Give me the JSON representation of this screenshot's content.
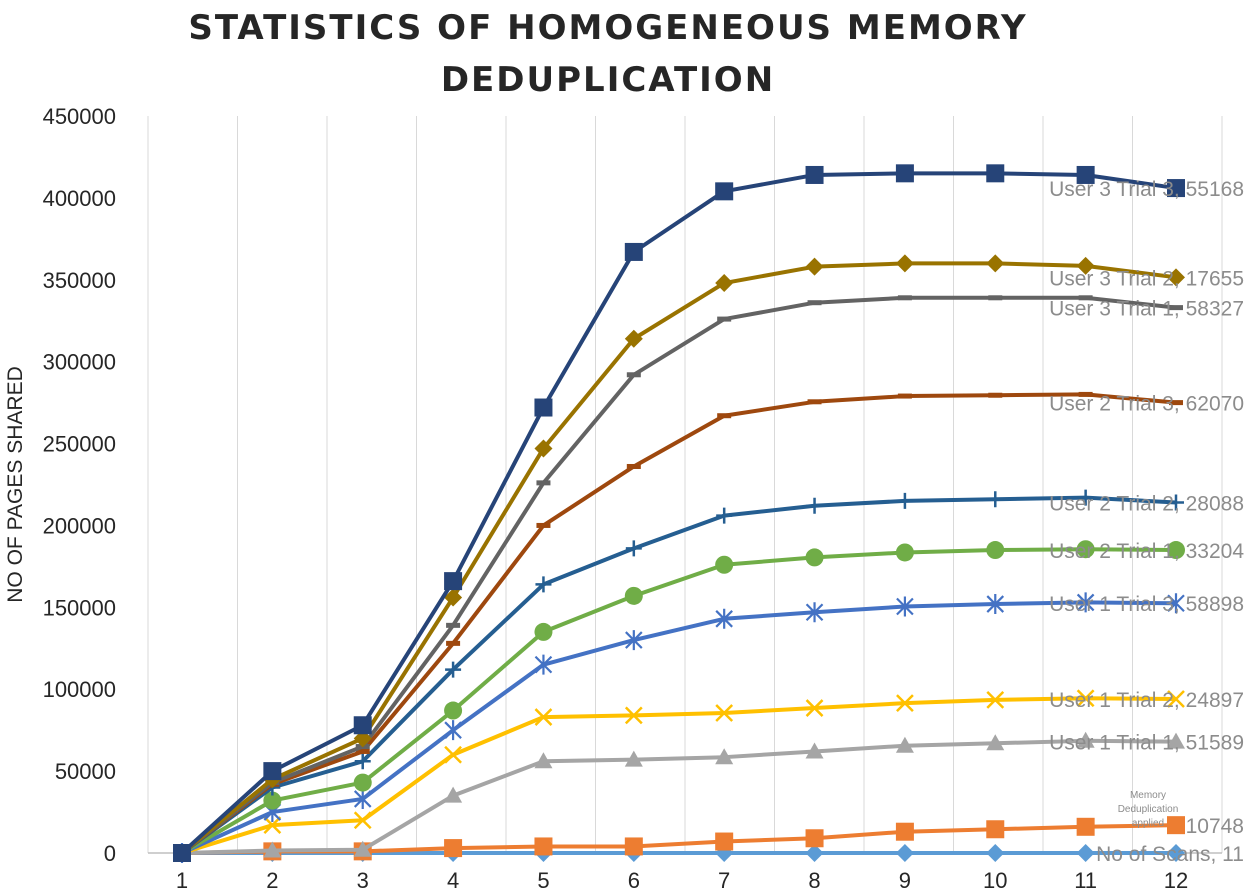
{
  "chart_data": {
    "type": "line",
    "title_lines": [
      "STATISTICS  OF HOMOGENEOUS  MEMORY",
      "DEDUPLICATION"
    ],
    "title": "STATISTICS  OF HOMOGENEOUS  MEMORY DEDUPLICATION",
    "xlabel": "",
    "ylabel": "NO OF PAGES SHARED",
    "x": [
      1,
      2,
      3,
      4,
      5,
      6,
      7,
      8,
      9,
      10,
      11,
      12
    ],
    "ylim": [
      0,
      450000
    ],
    "yticks": [
      "0",
      "50000",
      "100000",
      "150000",
      "200000",
      "250000",
      "300000",
      "350000",
      "400000",
      "450000"
    ],
    "xticks": [
      "1",
      "2",
      "3",
      "4",
      "5",
      "6",
      "7",
      "8",
      "9",
      "10",
      "11",
      "12"
    ],
    "grid": "vertical",
    "series": [
      {
        "name": "No of Scans",
        "color": "#5b9bd5",
        "marker": "diamond",
        "values": [
          0,
          0,
          0,
          0,
          0,
          0,
          0,
          0,
          0,
          0,
          0,
          0
        ],
        "label": "No of Scans, 11"
      },
      {
        "name": "Memory Deduplication applied",
        "color": "#ed7d31",
        "marker": "square",
        "values": [
          0,
          1000,
          1000,
          3000,
          4000,
          4000,
          7000,
          9000,
          13000,
          14500,
          16000,
          17000
        ],
        "label": "10748"
      },
      {
        "name": "User 1 Trial 1",
        "color": "#a5a5a5",
        "marker": "triangle",
        "values": [
          0,
          1500,
          2000,
          35000,
          56000,
          57000,
          58500,
          62000,
          65500,
          67000,
          68500,
          68000
        ],
        "label": "User 1 Trial 1, 51589"
      },
      {
        "name": "User 1 Trial 2",
        "color": "#ffc000",
        "marker": "x",
        "values": [
          0,
          17000,
          20000,
          60000,
          83000,
          84000,
          85500,
          88500,
          91500,
          93500,
          94500,
          94000
        ],
        "label": "User 1 Trial 2, 24897"
      },
      {
        "name": "User 1 Trial 3",
        "color": "#4472c4",
        "marker": "star",
        "values": [
          0,
          25000,
          33000,
          75000,
          115000,
          130000,
          143000,
          147000,
          150500,
          152000,
          153000,
          152500
        ],
        "label": "User 1 Trial 3, 58898"
      },
      {
        "name": "User 2 Trial 1",
        "color": "#70ad47",
        "marker": "circle",
        "values": [
          0,
          32000,
          43000,
          87000,
          135000,
          157000,
          176000,
          180500,
          183500,
          185000,
          185500,
          185000
        ],
        "label": "User 2 Trial 1, 33204"
      },
      {
        "name": "User 2 Trial 2",
        "color": "#255e91",
        "marker": "plus",
        "values": [
          0,
          40000,
          56000,
          112000,
          164000,
          186000,
          206000,
          212000,
          215000,
          216000,
          217000,
          214000
        ],
        "label": "User 2 Trial 2, 28088"
      },
      {
        "name": "User 2 Trial 3",
        "color": "#9e480e",
        "marker": "dash",
        "values": [
          0,
          42000,
          62000,
          128000,
          200000,
          236000,
          267000,
          275500,
          279000,
          279500,
          280000,
          275000
        ],
        "label": "User 2 Trial 3, 62070"
      },
      {
        "name": "User 3 Trial 1",
        "color": "#636363",
        "marker": "dash",
        "values": [
          0,
          43000,
          65000,
          139000,
          226000,
          292000,
          326000,
          336000,
          339000,
          339000,
          339000,
          333000
        ],
        "label": "User 3 Trial 1, 58327"
      },
      {
        "name": "User 3 Trial 2",
        "color": "#997300",
        "marker": "diamond",
        "values": [
          0,
          45000,
          70000,
          156000,
          247000,
          314000,
          348000,
          358000,
          360000,
          360000,
          358500,
          351500
        ],
        "label": "User 3 Trial 2, 17655"
      },
      {
        "name": "User 3 Trial 3",
        "color": "#264478",
        "marker": "square",
        "values": [
          0,
          50000,
          78000,
          166000,
          272000,
          367000,
          404000,
          414000,
          415000,
          415000,
          414000,
          406000
        ],
        "label": "User 3 Trial 3, 55168"
      }
    ],
    "annotations": [
      "Memory",
      "Deduplication",
      "applied"
    ]
  }
}
